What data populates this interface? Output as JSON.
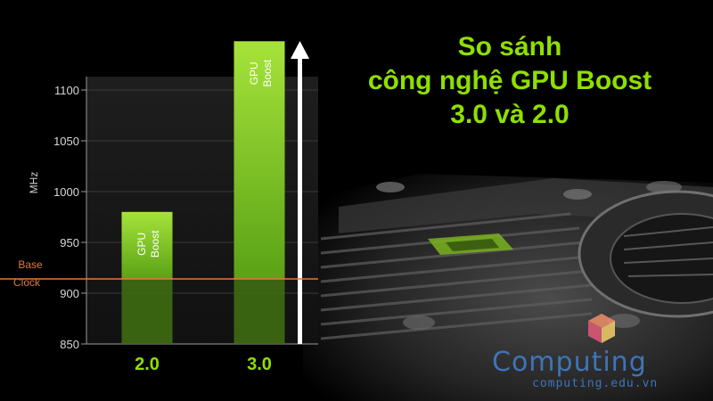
{
  "chart_data": {
    "type": "bar",
    "title_lines": [
      "So sánh",
      "công nghệ GPU Boost",
      "3.0 và 2.0"
    ],
    "ylabel": "MHz",
    "ylim": [
      850,
      1150
    ],
    "yticks": [
      850,
      900,
      950,
      1000,
      1050,
      1100
    ],
    "categories": [
      "2.0",
      "3.0"
    ],
    "values": [
      980,
      1148
    ],
    "bar_label": [
      "GPU",
      "Boost"
    ],
    "reference_line": {
      "label_lines": [
        "Base",
        "Clock"
      ],
      "value": 914
    },
    "grid": true,
    "colors": {
      "bar_top": "#a6e33a",
      "bar_bottom": "#5aa216",
      "bar_base": "#3e6b12",
      "base_line": "#e07a3a",
      "title": "#8ee000",
      "category": "#8ee000"
    }
  },
  "watermark": {
    "name": "Computing",
    "url": "computing.edu.vn",
    "color": "#3f74b8"
  }
}
